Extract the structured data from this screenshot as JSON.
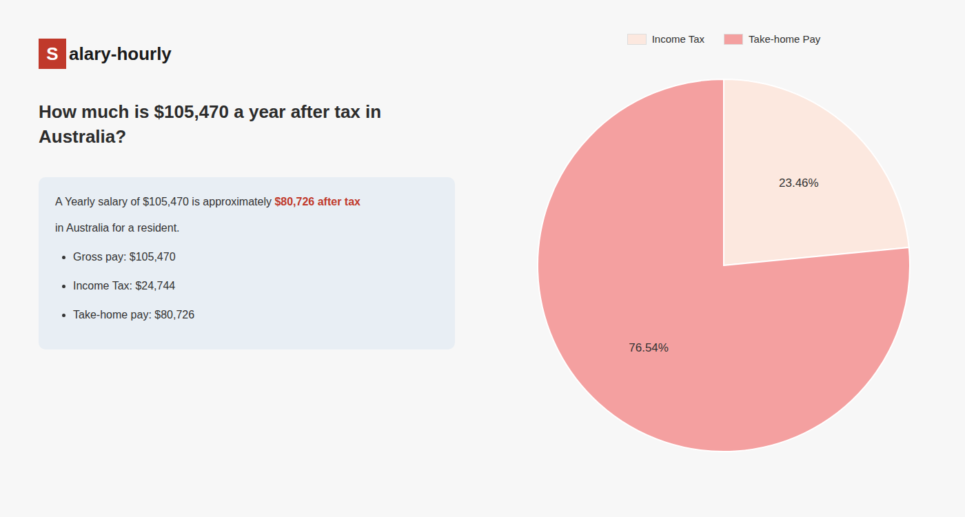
{
  "chart_data": {
    "type": "pie",
    "title": "How much is $105,470 a year after tax in\nAustralia?",
    "logo": {
      "text": [
        "S",
        "alary-hourly"
      ],
      "color": "#c0392b"
    },
    "annotations": {
      "body_lines": [
        [
          {
            "text": "A Yearly salary of $105,470 is approximately "
          },
          {
            "text": "$80,726 after tax",
            "color": "#c0392b"
          }
        ],
        [
          {
            "text": "in Australia for a resident."
          }
        ]
      ],
      "bullets": [
        "Gross pay: $105,470",
        "Income Tax: $24,744",
        "Take-home pay: $80,726"
      ]
    },
    "categories": [
      "Income Tax",
      "Take-home Pay"
    ],
    "values": [
      23.46,
      76.54
    ],
    "value_labels": [
      "23.46%",
      "76.54%"
    ],
    "colors": [
      "#fce8df",
      "#f4a0a0"
    ],
    "data_labels": true,
    "legend": "top"
  }
}
